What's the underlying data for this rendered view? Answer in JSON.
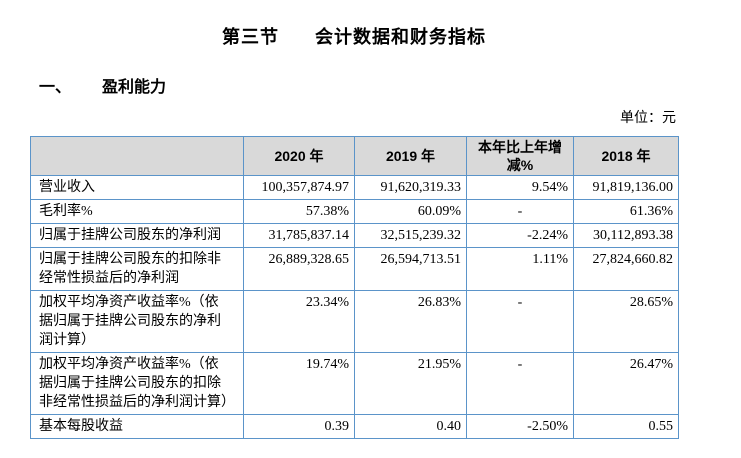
{
  "colors": {
    "border": "#5b94c9",
    "header_bg": "#d9d9d9",
    "text": "#000000",
    "page_bg": "#ffffff"
  },
  "header": {
    "section_number": "第三节",
    "section_title": "会计数据和财务指标",
    "subsection_number": "一、",
    "subsection_title": "盈利能力"
  },
  "table": {
    "unit_label": "单位：元",
    "columns": [
      "",
      "2020 年",
      "2019 年",
      "本年比上年增减%",
      "2018 年"
    ],
    "rows": [
      {
        "label": "营业收入",
        "values": [
          "100,357,874.97",
          "91,620,319.33",
          "9.54%",
          "91,819,136.00"
        ]
      },
      {
        "label": "毛利率%",
        "values": [
          "57.38%",
          "60.09%",
          "-",
          "61.36%"
        ]
      },
      {
        "label": "归属于挂牌公司股东的净利润",
        "values": [
          "31,785,837.14",
          "32,515,239.32",
          "-2.24%",
          "30,112,893.38"
        ]
      },
      {
        "label": "归属于挂牌公司股东的扣除非经常性损益后的净利润",
        "values": [
          "26,889,328.65",
          "26,594,713.51",
          "1.11%",
          "27,824,660.82"
        ]
      },
      {
        "label": "加权平均净资产收益率%（依据归属于挂牌公司股东的净利润计算）",
        "values": [
          "23.34%",
          "26.83%",
          "-",
          "28.65%"
        ]
      },
      {
        "label": "加权平均净资产收益率%（依据归属于挂牌公司股东的扣除非经常性损益后的净利润计算）",
        "values": [
          "19.74%",
          "21.95%",
          "-",
          "26.47%"
        ]
      },
      {
        "label": "基本每股收益",
        "values": [
          "0.39",
          "0.40",
          "-2.50%",
          "0.55"
        ]
      }
    ]
  }
}
